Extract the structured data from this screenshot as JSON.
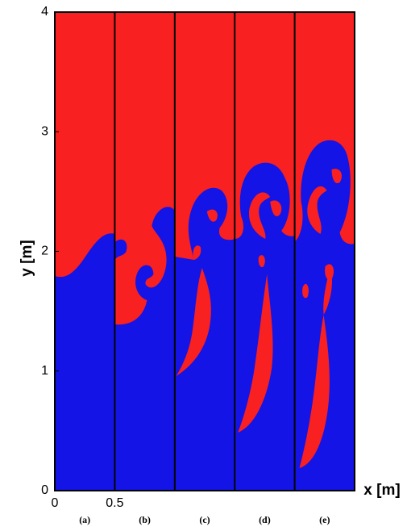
{
  "chart_data": {
    "type": "panels",
    "ylabel": "y [m]",
    "xlabel": "x [m]",
    "ylim": [
      0,
      4
    ],
    "yticks": [
      0,
      1,
      2,
      3,
      4
    ],
    "xlim": [
      0,
      0.5
    ],
    "xticks": [
      0,
      0.5
    ],
    "panels": [
      "(a)",
      "(b)",
      "(c)",
      "(d)",
      "(e)"
    ]
  }
}
